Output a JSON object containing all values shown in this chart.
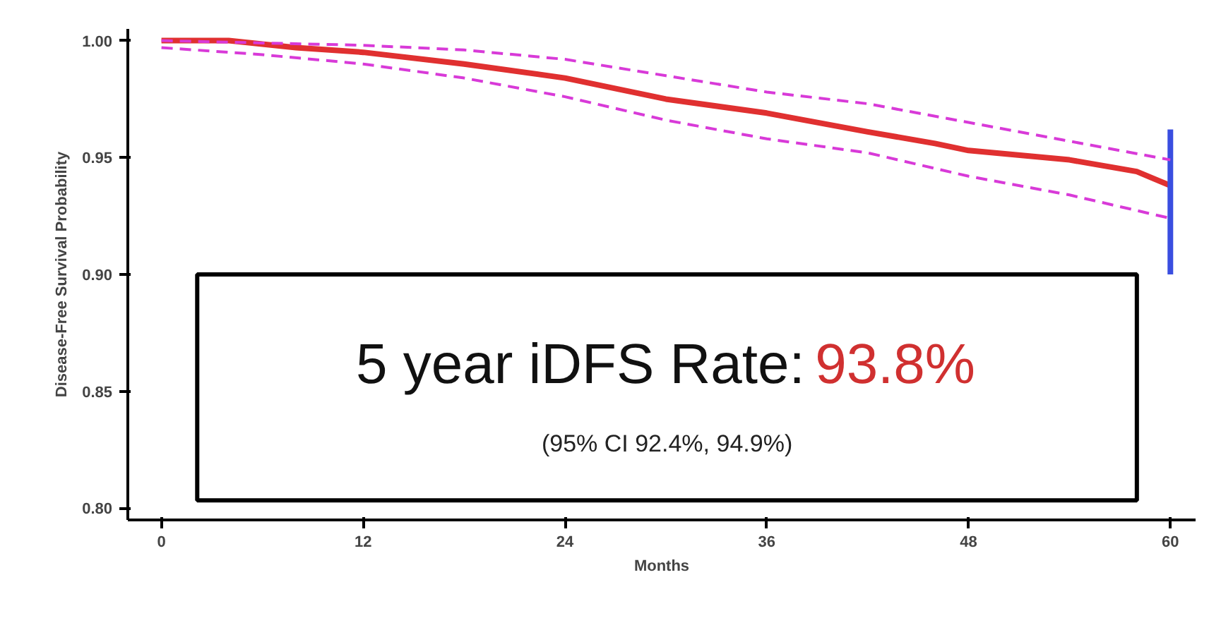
{
  "chart_data": {
    "type": "line",
    "xlabel": "Months",
    "ylabel": "Disease-Free Survival Probability",
    "xlim": [
      -2,
      61.5
    ],
    "ylim": [
      0.795,
      1.005
    ],
    "xticks": [
      0,
      12,
      24,
      36,
      48,
      60
    ],
    "yticks": [
      {
        "value": 0.8,
        "label": "0.80"
      },
      {
        "value": 0.85,
        "label": "0.85"
      },
      {
        "value": 0.9,
        "label": "0.90"
      },
      {
        "value": 0.95,
        "label": "0.95"
      },
      {
        "value": 1.0,
        "label": "1.00"
      }
    ],
    "grid": false,
    "marker": "none",
    "series": [
      {
        "color": "#d83ad8",
        "line_style": "dashed",
        "x": [
          0,
          6,
          12,
          18,
          24,
          30,
          36,
          42,
          48,
          54,
          60
        ],
        "values": [
          1.0,
          0.999,
          0.998,
          0.996,
          0.992,
          0.985,
          0.978,
          0.973,
          0.965,
          0.957,
          0.949
        ]
      },
      {
        "color": "#d83ad8",
        "line_style": "dashed",
        "x": [
          0,
          6,
          12,
          18,
          24,
          30,
          36,
          42,
          48,
          54,
          60
        ],
        "values": [
          0.997,
          0.994,
          0.99,
          0.984,
          0.976,
          0.966,
          0.958,
          0.952,
          0.942,
          0.934,
          0.924
        ]
      },
      {
        "color": "#e03030",
        "line_style": "solid",
        "x": [
          0,
          4,
          8,
          12,
          18,
          24,
          30,
          36,
          42,
          46,
          48,
          54,
          58,
          60
        ],
        "values": [
          1.0,
          1.0,
          0.997,
          0.995,
          0.99,
          0.984,
          0.975,
          0.969,
          0.961,
          0.956,
          0.953,
          0.949,
          0.944,
          0.938
        ]
      },
      {
        "color": "#3a4ee0",
        "line_style": "solid",
        "x": [
          60,
          60
        ],
        "values": [
          0.9,
          0.962
        ]
      }
    ],
    "annotations": [
      "5 year iDFS Rate: 93.8%",
      "(95% CI 92.4%, 94.9%)"
    ]
  }
}
